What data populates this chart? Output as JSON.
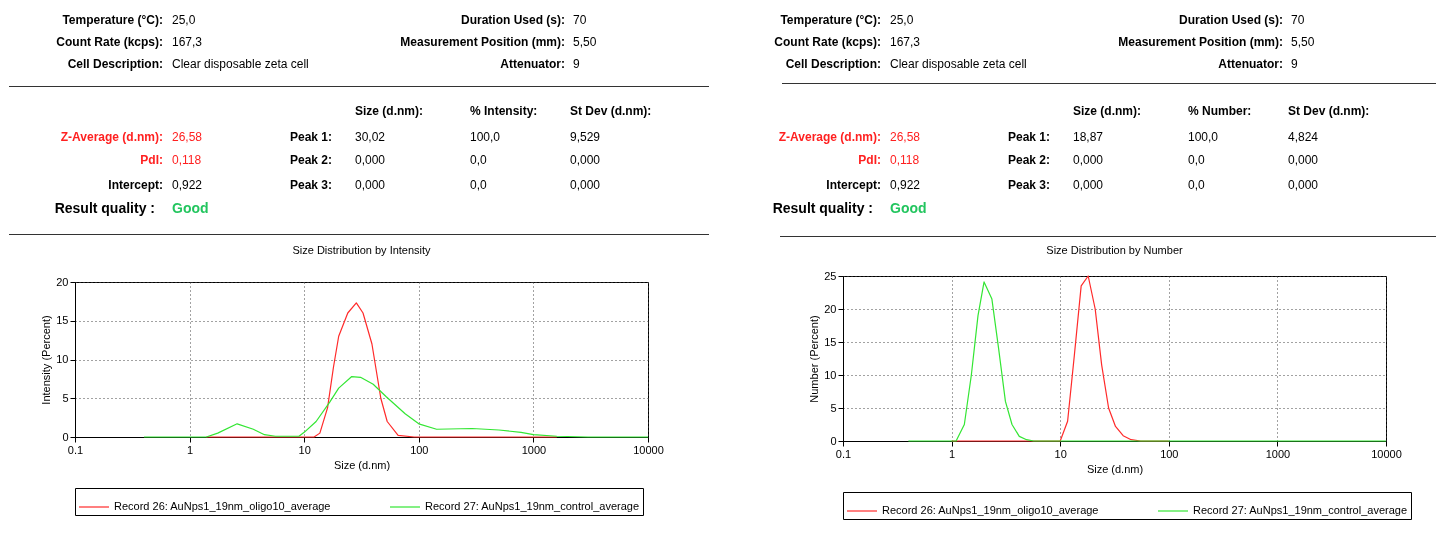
{
  "chart_data": [
    {
      "type": "other",
      "annotations": [
        "Temperature (°C):",
        "25,0",
        "Duration Used (s):",
        "70",
        "Count Rate (kcps):",
        "167,3",
        "Measurement Position (mm):",
        "5,50",
        "Cell Description:",
        "Clear disposable zeta cell",
        "Attenuator:",
        "9",
        "Size (d.nm):",
        "% Intensity:",
        "St Dev (d.nm):",
        "Z-Average (d.nm):",
        "26,58",
        "Peak 1:",
        "30,02",
        "100,0",
        "9,529",
        "PdI:",
        "0,118",
        "Peak 2:",
        "0,000",
        "0,0",
        "0,000",
        "Intercept:",
        "0,922",
        "Peak 3:",
        "0,000",
        "0,0",
        "0,000",
        "Result quality :",
        "Good"
      ]
    },
    {
      "type": "line",
      "title": "Size Distribution by Intensity",
      "xlabel": "Size (d.nm)",
      "ylabel": "Intensity (Percent)",
      "log": "x",
      "xlim": [
        0.1,
        10000
      ],
      "xticks": [
        0.1,
        1,
        10,
        100,
        1000,
        10000
      ],
      "ylim": [
        0,
        20
      ],
      "yticks": [
        0,
        5,
        10,
        15,
        20
      ],
      "grid": true,
      "legend": "bottom",
      "series": [
        {
          "name": "Record 26: AuNps1_19nm_oligo10_average",
          "color": "#ff2a2a",
          "x": [
            1.4,
            5,
            10,
            12.2,
            13.7,
            16,
            18,
            20,
            24,
            28.5,
            32.6,
            39,
            46.6,
            53,
            66,
            91,
            200,
            600,
            1600
          ],
          "values": [
            0,
            0,
            0,
            0,
            0.5,
            3.8,
            9,
            13,
            16,
            17.3,
            16,
            12,
            5,
            2,
            0.2,
            0,
            0,
            0,
            0
          ]
        },
        {
          "name": "Record 27: AuNps1_19nm_control_average",
          "color": "#33e633",
          "x": [
            0.4,
            1,
            1.4,
            1.76,
            2.6,
            3.6,
            4.5,
            5.6,
            9,
            10,
            12.7,
            16.7,
            20,
            26,
            31,
            40,
            52,
            76,
            100,
            143,
            292,
            500,
            780,
            1000,
            1600,
            3000,
            10000
          ],
          "values": [
            0,
            0,
            0,
            0.5,
            1.7,
            1.0,
            0.3,
            0.1,
            0.1,
            0.6,
            2,
            4.5,
            6.3,
            7.8,
            7.7,
            6.8,
            5.2,
            3,
            1.7,
            1.0,
            1.1,
            0.9,
            0.6,
            0.3,
            0.1,
            0,
            0
          ]
        }
      ]
    },
    {
      "type": "other",
      "annotations": [
        "Temperature (°C):",
        "25,0",
        "Duration Used (s):",
        "70",
        "Count Rate (kcps):",
        "167,3",
        "Measurement Position (mm):",
        "5,50",
        "Cell Description:",
        "Clear disposable zeta cell",
        "Attenuator:",
        "9",
        "Size (d.nm):",
        "% Number:",
        "St Dev (d.nm):",
        "Z-Average (d.nm):",
        "26,58",
        "Peak 1:",
        "18,87",
        "100,0",
        "4,824",
        "PdI:",
        "0,118",
        "Peak 2:",
        "0,000",
        "0,0",
        "0,000",
        "Intercept:",
        "0,922",
        "Peak 3:",
        "0,000",
        "0,0",
        "0,000",
        "Result quality :",
        "Good"
      ]
    },
    {
      "type": "line",
      "title": "Size Distribution by Number",
      "xlabel": "Size (d.nm)",
      "ylabel": "Number (Percent)",
      "log": "x",
      "xlim": [
        0.1,
        10000
      ],
      "xticks": [
        0.1,
        1,
        10,
        100,
        1000,
        10000
      ],
      "ylim": [
        0,
        25
      ],
      "yticks": [
        0,
        5,
        10,
        15,
        20,
        25
      ],
      "grid": true,
      "legend": "bottom",
      "series": [
        {
          "name": "Record 26: AuNps1_19nm_oligo10_average",
          "color": "#ff2a2a",
          "x": [
            1,
            5,
            10,
            11.7,
            13.5,
            15.6,
            18.1,
            21,
            24.1,
            27.9,
            32.3,
            38,
            45,
            55,
            100
          ],
          "values": [
            0,
            0,
            0,
            3,
            13,
            23.5,
            25,
            20,
            11.5,
            5,
            2.2,
            0.8,
            0.2,
            0,
            0
          ]
        },
        {
          "name": "Record 27: AuNps1_19nm_control_average",
          "color": "#33e633",
          "x": [
            0.4,
            1,
            1.1,
            1.31,
            1.52,
            1.75,
            1.99,
            2.35,
            2.71,
            3.13,
            3.6,
            4.2,
            4.9,
            5.7,
            10,
            100,
            1000,
            10000
          ],
          "values": [
            0,
            0,
            0,
            2.5,
            10,
            19,
            24.1,
            21.5,
            14,
            6,
            2.5,
            0.7,
            0.2,
            0,
            0,
            0,
            0,
            0
          ]
        }
      ]
    }
  ]
}
